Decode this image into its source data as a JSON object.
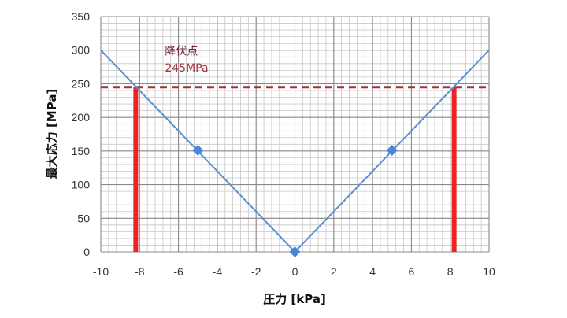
{
  "colors": {
    "line": "#5b8fd0",
    "marker": "#4a86d8",
    "threshold": "#a0323c",
    "bar": "#ee2222",
    "grid_major": "#8a8a8a",
    "grid_minor": "#c8c8c8"
  },
  "chart_data": {
    "type": "line",
    "xlabel": "圧力 [kPa]",
    "ylabel": "最大応力 [MPa]",
    "xlim": [
      -10,
      10
    ],
    "ylim": [
      0,
      350
    ],
    "xticks": [
      -10,
      -8,
      -6,
      -4,
      -2,
      0,
      2,
      4,
      6,
      8,
      10
    ],
    "yticks": [
      0,
      50,
      100,
      150,
      200,
      250,
      300,
      350
    ],
    "x_minor_step": 0.4,
    "y_minor_step": 10,
    "grid": true,
    "series": [
      {
        "x": [
          -10,
          0,
          10
        ],
        "y": [
          300,
          0,
          300
        ],
        "style": "line"
      },
      {
        "x": [
          -5,
          0,
          5
        ],
        "y": [
          151,
          0,
          151
        ],
        "style": "diamond-markers"
      }
    ],
    "threshold": {
      "y": 245,
      "style": "dashed"
    },
    "vertical_markers": [
      {
        "x": -8.2,
        "y0": 0,
        "y1": 245
      },
      {
        "x": 8.2,
        "y0": 0,
        "y1": 245
      }
    ],
    "annotation": {
      "line1": "降伏点",
      "line2": "245MPa",
      "x": -6.7,
      "y1": 293,
      "y2": 268
    }
  }
}
